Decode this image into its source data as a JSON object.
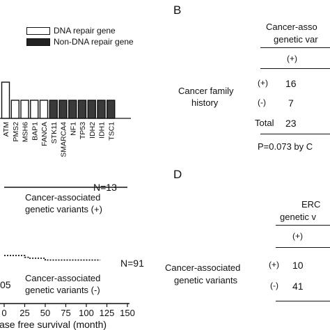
{
  "panel_a": {
    "legend": {
      "dna_repair": "DNA repair gene",
      "non_dna_repair": "Non-DNA repair gene"
    },
    "colors": {
      "dna_repair": "#ffffff",
      "non_dna_repair": "#3a3a3a",
      "outline": "#111111"
    }
  },
  "chart_data": [
    {
      "type": "bar",
      "categories": [
        "ATM",
        "PMS2",
        "MSH6",
        "BAP1",
        "FANCA",
        "STK11",
        "SMARCA4",
        "NF1",
        "TP53",
        "IDH2",
        "IDH1",
        "TSC1"
      ],
      "group": [
        "DNA repair gene",
        "DNA repair gene",
        "DNA repair gene",
        "DNA repair gene",
        "DNA repair gene",
        "Non-DNA repair gene",
        "Non-DNA repair gene",
        "Non-DNA repair gene",
        "Non-DNA repair gene",
        "Non-DNA repair gene",
        "Non-DNA repair gene",
        "Non-DNA repair gene"
      ],
      "values": [
        2,
        1,
        1,
        1,
        1,
        1,
        1,
        1,
        1,
        1,
        1,
        1
      ],
      "xlabel": "",
      "ylabel": "",
      "legend": "top"
    },
    {
      "type": "line",
      "series": [
        {
          "x": [
            0,
            150
          ],
          "y": [
            1.0,
            1.0
          ],
          "n_label": "N=13"
        },
        {
          "x": [
            0,
            25,
            25,
            30,
            30,
            50,
            50,
            117
          ],
          "y": [
            1.0,
            1.0,
            0.99,
            0.99,
            0.985,
            0.985,
            0.975,
            0.975
          ],
          "n_label": "N=91"
        }
      ],
      "xlabel": "ase free survival (month)",
      "xticks": [
        "0",
        "25",
        "50",
        "75",
        "100",
        "125",
        "150"
      ],
      "xlim": [
        0,
        150
      ]
    }
  ],
  "panel_c": {
    "n_top": "N=13",
    "label_top": [
      "Cancer-associated",
      "genetic variants (+)"
    ],
    "n_bottom": "N=91",
    "label_bottom": [
      "Cancer-associated",
      "genetic variants (-)"
    ],
    "p_fragment": "05",
    "xlabel": "ase free survival (month)",
    "xticks": [
      "0",
      "25",
      "50",
      "75",
      "100",
      "125",
      "150"
    ]
  },
  "panel_b": {
    "letter": "B",
    "header": [
      "Cancer-asso",
      "genetic var"
    ],
    "col_plus": "(+)",
    "row_label": [
      "Cancer family",
      "history"
    ],
    "rows": [
      {
        "sign": "(+)",
        "value": "16"
      },
      {
        "sign": "(-)",
        "value": "7"
      }
    ],
    "total_label": "Total",
    "total_value": "23",
    "p_text": "P=0.073 by C"
  },
  "panel_d": {
    "letter": "D",
    "header": [
      "ERC",
      "genetic v"
    ],
    "col_plus": "(+)",
    "row_label": [
      "Cancer-associated",
      "genetic variants"
    ],
    "rows": [
      {
        "sign": "(+)",
        "value": "10"
      },
      {
        "sign": "(-)",
        "value": "41"
      }
    ]
  }
}
